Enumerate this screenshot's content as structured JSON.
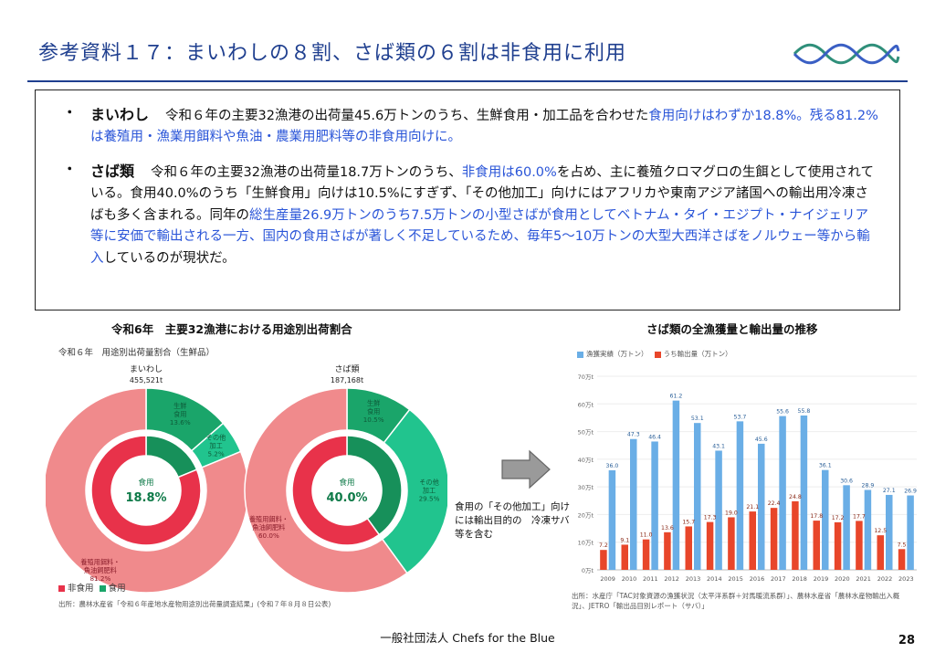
{
  "header": {
    "title": "参考資料１７：まいわしの８割、さば類の６割は非食用に利用"
  },
  "summary": {
    "bullet_char": "・",
    "iwashi": {
      "name": "まいわし",
      "text1": "令和６年の主要32漁港の出荷量45.6万トンのうち、生鮮食用・加工品を合わせた",
      "hl1": "食用向けはわずか18.8%。",
      "hl2": "残る81.2%は養殖用・漁業用餌料や魚油・農業用肥料等の非食用向けに。"
    },
    "saba": {
      "name": "さば類",
      "text1": "令和６年の主要32漁港の出荷量18.7万トンのうち、",
      "hl1": "非食用は60.0%",
      "text2": "を占め、主に養殖クロマグロの生餌として使用されている。食用40.0%のうち「生鮮食用」向けは10.5%にすぎず、「その他加工」向けにはアフリカや東南アジア諸国への輸出用冷凍さばも多く含まれる。同年の",
      "hl2": "総生産量26.9万トンのうち7.5万トンの小型さばが食用としてベトナム・タイ・エジプト・ナイジェリア等に安価で輸出される一方、国内の食用さばが著しく不足しているため、毎年5〜10万トンの大型大西洋さばをノルウェー等から輸入",
      "text3": "しているのが現状だ。"
    }
  },
  "left_panel": {
    "title": "令和6年　主要32漁港における用途別出荷割合",
    "subtitle": "令和６年　用途別出荷量割合（生鮮品）",
    "source": "出所：農林水産省「令和６年産地水産物用途別出荷量調査結果」(令和７年８月８日公表)",
    "legend": [
      "非食用",
      "食用"
    ]
  },
  "right_panel": {
    "title": "さば類の全漁獲量と輸出量の推移",
    "legend": [
      "漁獲実績（万トン）",
      "うち輸出量（万トン）"
    ],
    "source": "出所：水産庁「TAC対象資源の漁獲状況（太平洋系群＋対馬暖流系群）」、農林水産省「農林水産物輸出入概況」、JETRO「輸出品目別レポート（サバ）」"
  },
  "arrow_note": "食用の「その他加工」向けには輸出目的の　冷凍サバ等を含む",
  "footer": {
    "org": "一般社団法人 Chefs for the Blue",
    "page": "28"
  },
  "colors": {
    "title": "#1f3f8f",
    "highlight": "#2a55d8",
    "non_food": "#f08a8c",
    "non_food_inner": "#e8324a",
    "food": "#1aa56a",
    "food_light": "#21c48e",
    "bar_catch": "#6aaee6",
    "bar_export": "#e8462a"
  },
  "chart_data": [
    {
      "type": "pie",
      "title": "まいわし",
      "total": "455,521t",
      "center_label": "食用",
      "center_value": "18.8%",
      "inner": [
        {
          "name": "非食用",
          "value": 81.2
        },
        {
          "name": "食用",
          "value": 18.8
        }
      ],
      "outer": [
        {
          "name": "生鮮食用",
          "label": "生鮮\n食用",
          "value": 13.6,
          "display": "13.6%"
        },
        {
          "name": "その他加工",
          "label": "その他\n加工",
          "value": 5.2,
          "display": "5.2%"
        },
        {
          "name": "養殖用餌料・魚油飼肥料",
          "label": "養殖用餌料・\n魚油飼肥料",
          "value": 81.2,
          "display": "81.2%"
        }
      ]
    },
    {
      "type": "pie",
      "title": "さば類",
      "total": "187,168t",
      "center_label": "食用",
      "center_value": "40.0%",
      "inner": [
        {
          "name": "非食用",
          "value": 60.0
        },
        {
          "name": "食用",
          "value": 40.0
        }
      ],
      "outer": [
        {
          "name": "生鮮食用",
          "label": "生鮮\n食用",
          "value": 10.5,
          "display": "10.5%"
        },
        {
          "name": "その他加工",
          "label": "その他\n加工",
          "value": 29.5,
          "display": "29.5%"
        },
        {
          "name": "養殖用餌料・魚油飼肥料",
          "label": "養殖用餌料・\n魚油飼肥料",
          "value": 60.0,
          "display": "60.0%"
        }
      ]
    },
    {
      "type": "bar",
      "categories": [
        "2009",
        "2010",
        "2011",
        "2012",
        "2013",
        "2014",
        "2015",
        "2016",
        "2017",
        "2018",
        "2019",
        "2020",
        "2021",
        "2022",
        "2023"
      ],
      "series": [
        {
          "name": "漁獲実績（万トン）",
          "values": [
            36.0,
            47.3,
            46.4,
            61.2,
            53.1,
            43.1,
            53.7,
            45.6,
            55.6,
            55.8,
            36.1,
            30.6,
            28.9,
            27.1,
            26.9
          ]
        },
        {
          "name": "うち輸出量（万トン）",
          "values": [
            7.2,
            9.1,
            11.0,
            13.6,
            15.7,
            17.3,
            19.0,
            21.1,
            22.4,
            24.8,
            17.8,
            17.2,
            17.7,
            12.5,
            7.5
          ]
        }
      ],
      "yticks": [
        "0万t",
        "10万t",
        "20万t",
        "30万t",
        "40万t",
        "50万t",
        "60万t",
        "70万t"
      ],
      "ylim": [
        0,
        70
      ]
    }
  ]
}
